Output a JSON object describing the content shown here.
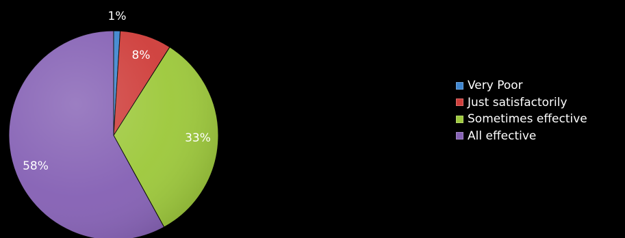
{
  "chart_data": {
    "type": "pie",
    "categories": [
      "Very Poor",
      "Just satisfactorily",
      "Sometimes effective",
      "All effective"
    ],
    "values": [
      1,
      8,
      33,
      58
    ],
    "labels": [
      "1%",
      "8%",
      "33%",
      "58%"
    ],
    "colors": [
      "#3f86cf",
      "#cf3f3c",
      "#9ec93d",
      "#8662b5"
    ],
    "legend_position": "right",
    "start_angle": "12 o'clock",
    "direction": "clockwise"
  }
}
